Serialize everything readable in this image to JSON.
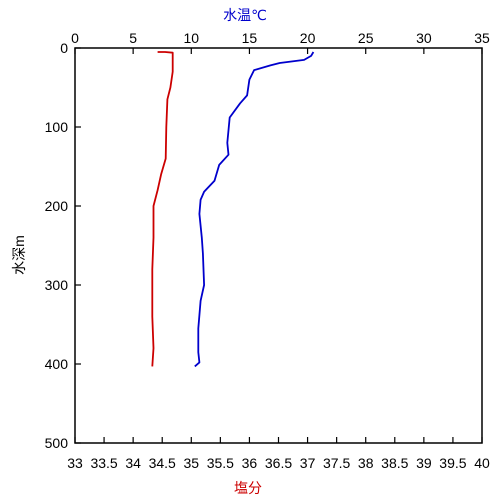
{
  "chart_data": {
    "type": "line",
    "title": "",
    "y_axis": {
      "label": "水深m",
      "range": [
        0,
        500
      ],
      "ticks": [
        "0",
        "100",
        "200",
        "300",
        "400",
        "500"
      ],
      "inverted": true
    },
    "x_axis_top": {
      "label": "水温℃",
      "label_color": "#0000cc",
      "range": [
        0,
        35
      ],
      "ticks": [
        "0",
        "5",
        "10",
        "15",
        "20",
        "25",
        "30",
        "35"
      ]
    },
    "x_axis_bottom": {
      "label": "塩分",
      "label_color": "#cc0000",
      "range": [
        33,
        40
      ],
      "ticks": [
        "33",
        "33.5",
        "34",
        "34.5",
        "35",
        "35.5",
        "36",
        "36.5",
        "37",
        "37.5",
        "38",
        "38.5",
        "39",
        "39.5",
        "40"
      ]
    },
    "grid": false,
    "series": [
      {
        "quantity": "水温",
        "axis": "top",
        "color": "#0000cc",
        "points": [
          [
            20.5,
            5
          ],
          [
            20.3,
            10
          ],
          [
            19.7,
            15
          ],
          [
            17.6,
            19
          ],
          [
            16.8,
            22
          ],
          [
            15.4,
            28
          ],
          [
            15.0,
            40
          ],
          [
            14.8,
            60
          ],
          [
            14.2,
            70
          ],
          [
            13.3,
            88
          ],
          [
            13.1,
            120
          ],
          [
            13.2,
            135
          ],
          [
            12.4,
            148
          ],
          [
            12.0,
            168
          ],
          [
            11.1,
            182
          ],
          [
            10.8,
            192
          ],
          [
            10.7,
            210
          ],
          [
            10.9,
            240
          ],
          [
            11.0,
            260
          ],
          [
            11.1,
            300
          ],
          [
            10.8,
            320
          ],
          [
            10.6,
            355
          ],
          [
            10.6,
            385
          ],
          [
            10.7,
            398
          ],
          [
            10.3,
            403
          ]
        ]
      },
      {
        "quantity": "塩分",
        "axis": "bottom",
        "color": "#cc0000",
        "points": [
          [
            34.42,
            5
          ],
          [
            34.55,
            5
          ],
          [
            34.68,
            6
          ],
          [
            34.68,
            30
          ],
          [
            34.64,
            50
          ],
          [
            34.59,
            65
          ],
          [
            34.57,
            100
          ],
          [
            34.56,
            140
          ],
          [
            34.48,
            160
          ],
          [
            34.42,
            180
          ],
          [
            34.35,
            200
          ],
          [
            34.35,
            240
          ],
          [
            34.33,
            280
          ],
          [
            34.33,
            340
          ],
          [
            34.35,
            380
          ],
          [
            34.33,
            403
          ]
        ]
      }
    ]
  }
}
